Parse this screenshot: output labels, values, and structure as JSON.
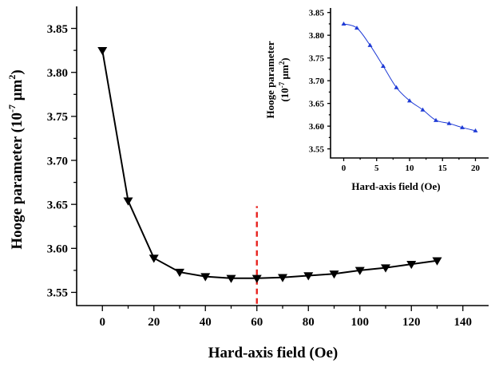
{
  "chart_data": [
    {
      "type": "line",
      "title": "",
      "xlabel": "Hard-axis field (Oe)",
      "ylabel": "Hooge parameter (10⁻⁷ μm²)",
      "ylabel_parts": {
        "main": "Hooge parameter (10",
        "exp1": "-7",
        "mid": " μm",
        "exp2": "2",
        "end": ")"
      },
      "xlim": [
        -10,
        150
      ],
      "ylim": [
        3.535,
        3.875
      ],
      "xticks": [
        0,
        20,
        40,
        60,
        80,
        100,
        120,
        140
      ],
      "yticks": [
        3.55,
        3.6,
        3.65,
        3.7,
        3.75,
        3.8,
        3.85
      ],
      "grid": false,
      "series": [
        {
          "marker": "down-triangle",
          "color": "#000000",
          "x": [
            0,
            10,
            20,
            30,
            40,
            50,
            60,
            70,
            80,
            90,
            100,
            110,
            120,
            130
          ],
          "y": [
            3.825,
            3.654,
            3.589,
            3.573,
            3.568,
            3.566,
            3.566,
            3.567,
            3.569,
            3.571,
            3.575,
            3.578,
            3.582,
            3.586
          ]
        }
      ],
      "annotations": [
        {
          "type": "vertical-dashed-line",
          "x": 60,
          "y_from": 3.537,
          "y_to": 3.648,
          "color": "#e8231f"
        }
      ]
    },
    {
      "type": "line",
      "title": "",
      "xlabel": "Hard-axis field (Oe)",
      "ylabel_line1": "Hooge parameter",
      "ylabel_parts": {
        "main": "(10",
        "exp1": "-7",
        "mid": " μm",
        "exp2": "2",
        "end": ")"
      },
      "xlim": [
        -2,
        22
      ],
      "ylim": [
        3.53,
        3.86
      ],
      "xticks": [
        0,
        5,
        10,
        15,
        20
      ],
      "yticks": [
        3.55,
        3.6,
        3.65,
        3.7,
        3.75,
        3.8,
        3.85
      ],
      "grid": false,
      "series": [
        {
          "marker": "up-triangle",
          "color": "#1f3bd6",
          "x": [
            0,
            2,
            4,
            6,
            8,
            10,
            12,
            14,
            16,
            18,
            20
          ],
          "y": [
            3.825,
            3.816,
            3.778,
            3.732,
            3.685,
            3.656,
            3.636,
            3.613,
            3.606,
            3.597,
            3.59
          ]
        }
      ]
    }
  ]
}
